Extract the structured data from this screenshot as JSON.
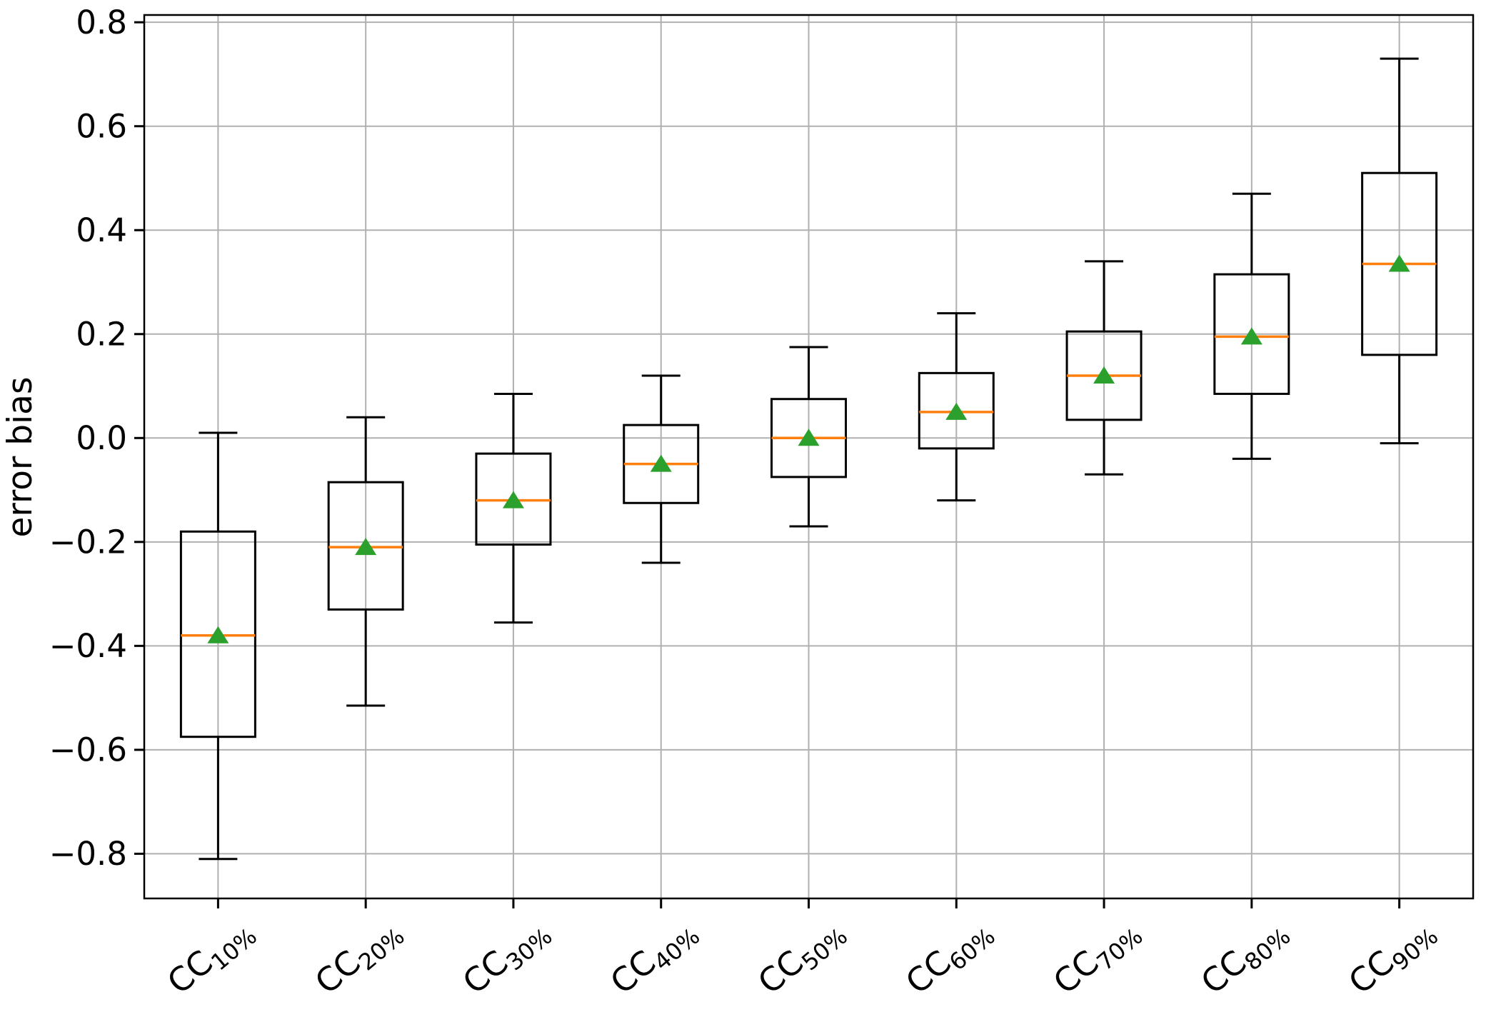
{
  "chart_data": {
    "type": "box",
    "title": "",
    "xlabel": "",
    "ylabel": "error bias",
    "ylim": [
      -0.886,
      0.814
    ],
    "yticks": [
      0.8,
      0.6,
      0.4,
      0.2,
      0.0,
      -0.2,
      -0.4,
      -0.6,
      -0.8
    ],
    "grid": true,
    "legend": "none",
    "categories": [
      {
        "base": "CC",
        "sub": "10%"
      },
      {
        "base": "CC",
        "sub": "20%"
      },
      {
        "base": "CC",
        "sub": "30%"
      },
      {
        "base": "CC",
        "sub": "40%"
      },
      {
        "base": "CC",
        "sub": "50%"
      },
      {
        "base": "CC",
        "sub": "60%"
      },
      {
        "base": "CC",
        "sub": "70%"
      },
      {
        "base": "CC",
        "sub": "80%"
      },
      {
        "base": "CC",
        "sub": "90%"
      }
    ],
    "series": [
      {
        "label": "CC10%",
        "whislo": -0.81,
        "q1": -0.575,
        "med": -0.38,
        "mean": -0.38,
        "q3": -0.18,
        "whishi": 0.01
      },
      {
        "label": "CC20%",
        "whislo": -0.515,
        "q1": -0.33,
        "med": -0.21,
        "mean": -0.21,
        "q3": -0.085,
        "whishi": 0.04
      },
      {
        "label": "CC30%",
        "whislo": -0.355,
        "q1": -0.205,
        "med": -0.12,
        "mean": -0.12,
        "q3": -0.03,
        "whishi": 0.085
      },
      {
        "label": "CC40%",
        "whislo": -0.24,
        "q1": -0.125,
        "med": -0.05,
        "mean": -0.05,
        "q3": 0.025,
        "whishi": 0.12
      },
      {
        "label": "CC50%",
        "whislo": -0.17,
        "q1": -0.075,
        "med": 0.0,
        "mean": 0.0,
        "q3": 0.075,
        "whishi": 0.175
      },
      {
        "label": "CC60%",
        "whislo": -0.12,
        "q1": -0.02,
        "med": 0.05,
        "mean": 0.05,
        "q3": 0.125,
        "whishi": 0.24
      },
      {
        "label": "CC70%",
        "whislo": -0.07,
        "q1": 0.035,
        "med": 0.12,
        "mean": 0.12,
        "q3": 0.205,
        "whishi": 0.34
      },
      {
        "label": "CC80%",
        "whislo": -0.04,
        "q1": 0.085,
        "med": 0.195,
        "mean": 0.195,
        "q3": 0.315,
        "whishi": 0.47
      },
      {
        "label": "CC90%",
        "whislo": -0.01,
        "q1": 0.16,
        "med": 0.335,
        "mean": 0.335,
        "q3": 0.51,
        "whishi": 0.73
      }
    ],
    "colors": {
      "median": "#ff7f0e",
      "mean_marker": "#2ca02c",
      "box_line": "#000000",
      "grid_line": "#b0b0b0",
      "background": "#ffffff"
    },
    "mean_marker_shape": "triangle-up"
  }
}
